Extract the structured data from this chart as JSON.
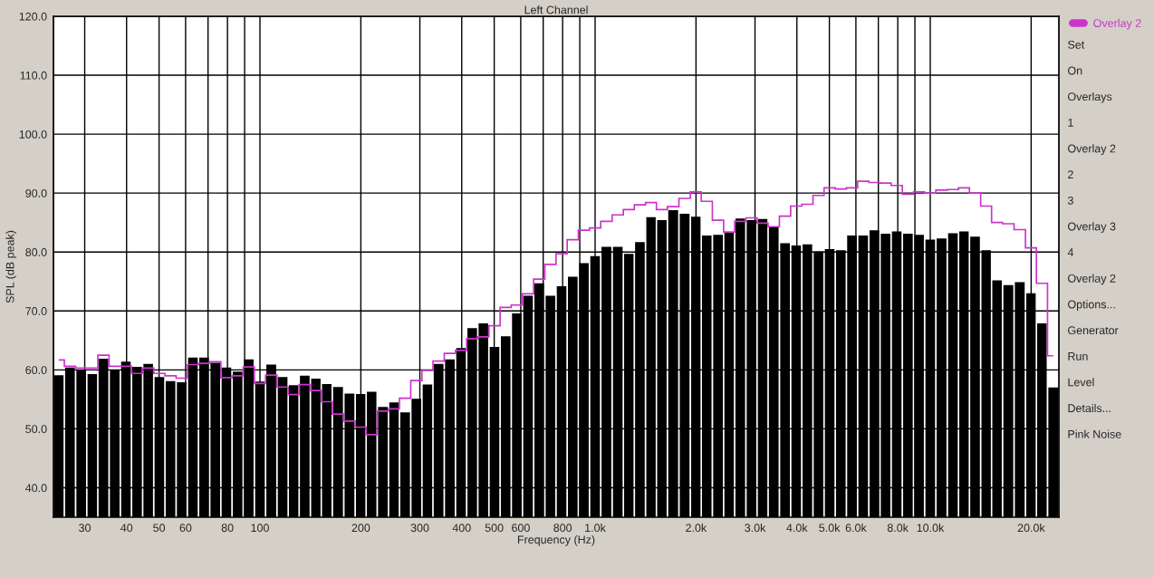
{
  "chart_data": {
    "type": "bar",
    "title": "Left Channel",
    "xlabel": "Frequency (Hz)",
    "ylabel": "SPL (dB peak)",
    "log": "x",
    "grid": true,
    "legend": "right",
    "xlim": [
      24.2,
      24200
    ],
    "ylim": [
      35,
      120
    ],
    "xticks": [
      30,
      40,
      50,
      60,
      {
        "value": 70,
        "label": null
      },
      80,
      {
        "value": 90,
        "label": null
      },
      100,
      200,
      300,
      400,
      500,
      600,
      {
        "value": 700,
        "label": null
      },
      800,
      {
        "value": 900,
        "label": null
      },
      {
        "value": 1000,
        "label": "1.0k"
      },
      {
        "value": 2000,
        "label": "2.0k"
      },
      {
        "value": 3000,
        "label": "3.0k"
      },
      {
        "value": 4000,
        "label": "4.0k"
      },
      {
        "value": 5000,
        "label": "5.0k"
      },
      {
        "value": 6000,
        "label": "6.0k"
      },
      {
        "value": 7000,
        "label": null
      },
      {
        "value": 8000,
        "label": "8.0k"
      },
      {
        "value": 9000,
        "label": null
      },
      {
        "value": 10000,
        "label": "10.0k"
      },
      {
        "value": 20000,
        "label": "20.0k"
      }
    ],
    "yticks": [
      {
        "value": 40,
        "label": "40.0"
      },
      {
        "value": 50,
        "label": "50.0"
      },
      {
        "value": 60,
        "label": "60.0"
      },
      {
        "value": 70,
        "label": "70.0"
      },
      {
        "value": 80,
        "label": "80.0"
      },
      {
        "value": 90,
        "label": "90.0"
      },
      {
        "value": 100,
        "label": "100.0"
      },
      {
        "value": 110,
        "label": "110.0"
      },
      {
        "value": 120,
        "label": "120.0"
      }
    ],
    "x": [
      25.1,
      27.1,
      29.3,
      31.6,
      34.1,
      36.9,
      39.8,
      43,
      46.4,
      50.1,
      54.1,
      58.4,
      63.1,
      68.1,
      73.6,
      79.4,
      85.8,
      92.6,
      100,
      108,
      117,
      126,
      136,
      147,
      158,
      171,
      185,
      200,
      215,
      233,
      251,
      271,
      293,
      316,
      341,
      369,
      398,
      430,
      464,
      501,
      541,
      584,
      631,
      681,
      736,
      794,
      858,
      926,
      1000,
      1080,
      1170,
      1260,
      1360,
      1470,
      1580,
      1710,
      1850,
      2000,
      2150,
      2330,
      2510,
      2710,
      2930,
      3160,
      3410,
      3690,
      3980,
      4300,
      4640,
      5010,
      5410,
      5840,
      6310,
      6810,
      7360,
      7940,
      8580,
      9260,
      10000,
      10800,
      11700,
      12600,
      13600,
      14700,
      15800,
      17100,
      18500,
      20000,
      21500,
      23300
    ],
    "series": [
      {
        "color": "#000000",
        "values": [
          59.1,
          60.4,
          60.0,
          59.3,
          61.9,
          60.0,
          61.4,
          60.5,
          61.0,
          58.8,
          58.1,
          57.9,
          62.1,
          62.1,
          61.2,
          60.4,
          59.7,
          61.8,
          58.0,
          60.9,
          58.8,
          57.4,
          59.0,
          58.5,
          57.6,
          57.1,
          56.0,
          55.9,
          56.3,
          53.7,
          54.5,
          52.8,
          55.1,
          57.5,
          61.0,
          61.8,
          63.7,
          67.1,
          67.9,
          63.9,
          65.7,
          69.6,
          72.6,
          74.7,
          72.6,
          74.2,
          75.8,
          78.1,
          79.3,
          80.9,
          80.9,
          79.7,
          81.7,
          85.9,
          85.4,
          87.1,
          86.5,
          86.0,
          82.8,
          82.9,
          83.4,
          85.7,
          85.4,
          85.6,
          84.3,
          81.5,
          81.1,
          81.3,
          80.1,
          80.5,
          80.3,
          82.8,
          82.8,
          83.7,
          83.1,
          83.5,
          83.1,
          82.9,
          82.1,
          82.3,
          83.2,
          83.5,
          82.6,
          80.3,
          75.2,
          74.4,
          74.9,
          73.0,
          67.9,
          57.0
        ]
      },
      {
        "type": "step",
        "name": "Overlay 2",
        "color": "#cc33cc",
        "values": [
          61.7,
          60.6,
          60.3,
          60.3,
          62.5,
          60.6,
          60.6,
          59.4,
          60.3,
          59.4,
          59.0,
          58.6,
          60.9,
          61.1,
          61.4,
          58.7,
          59.0,
          60.5,
          57.7,
          59.1,
          57.1,
          55.8,
          57.5,
          56.5,
          54.6,
          52.5,
          51.3,
          50.3,
          49.0,
          53.0,
          53.4,
          55.2,
          58.2,
          59.9,
          61.5,
          62.8,
          63.3,
          65.3,
          65.6,
          67.5,
          70.6,
          71.0,
          72.9,
          75.4,
          77.9,
          79.7,
          82.1,
          83.7,
          84.1,
          85.2,
          86.3,
          87.2,
          88.0,
          88.4,
          87.2,
          87.7,
          89.1,
          90.2,
          88.6,
          85.4,
          83.4,
          85.2,
          85.8,
          84.9,
          84.3,
          86.1,
          87.8,
          88.1,
          89.6,
          90.9,
          90.7,
          90.9,
          92.0,
          91.8,
          91.7,
          91.3,
          89.8,
          90.2,
          90.0,
          90.5,
          90.6,
          90.9,
          90.0,
          87.8,
          85.0,
          84.8,
          83.8,
          80.7,
          74.7,
          62.4
        ]
      }
    ],
    "annotations": [
      "Set",
      "On",
      "Overlays",
      "1",
      "Overlay 2",
      "2",
      "3",
      "Overlay 3",
      "4",
      "Overlay 2",
      "Options...",
      "Generator",
      "Run",
      "Level",
      "Details...",
      "Pink Noise"
    ]
  }
}
